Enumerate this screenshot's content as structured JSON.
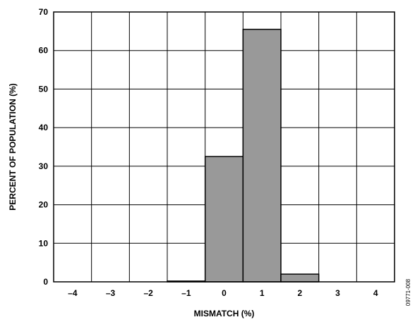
{
  "chart_data": {
    "type": "bar",
    "categories": [
      "–4",
      "–3",
      "–2",
      "–1",
      "0",
      "1",
      "2",
      "3",
      "4"
    ],
    "values": [
      0,
      0,
      0,
      0.2,
      32.5,
      65.5,
      2.0,
      0,
      0
    ],
    "xlabel": "MISMATCH (%)",
    "ylabel": "PERCENT OF POPULATION (%)",
    "ylim": [
      0,
      70
    ],
    "yticks": [
      0,
      10,
      20,
      30,
      40,
      50,
      60,
      70
    ],
    "grid": true,
    "bar_color": "#999999",
    "edge_color": "#000000",
    "legend": "none"
  },
  "figure_code": "09771-008"
}
